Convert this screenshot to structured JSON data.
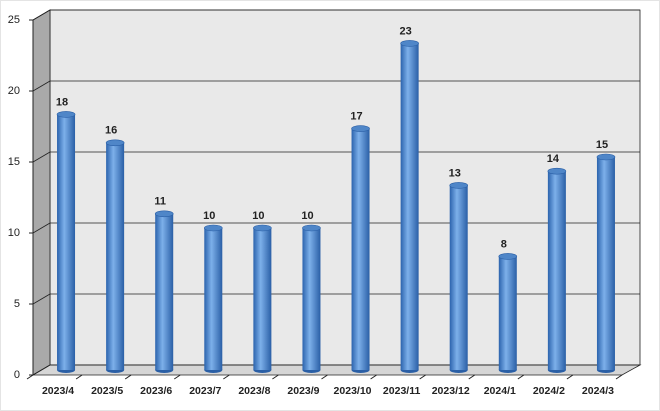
{
  "chart_data": {
    "type": "bar",
    "categories": [
      "2023/4",
      "2023/5",
      "2023/6",
      "2023/7",
      "2023/8",
      "2023/9",
      "2023/10",
      "2023/11",
      "2023/12",
      "2024/1",
      "2024/2",
      "2024/3"
    ],
    "values": [
      18,
      16,
      11,
      10,
      10,
      10,
      17,
      23,
      13,
      8,
      14,
      15
    ],
    "color": "#3f7fcc",
    "ylim": [
      0,
      25
    ],
    "yticks": [
      0,
      5,
      10,
      15,
      20,
      25
    ],
    "grid": true
  }
}
